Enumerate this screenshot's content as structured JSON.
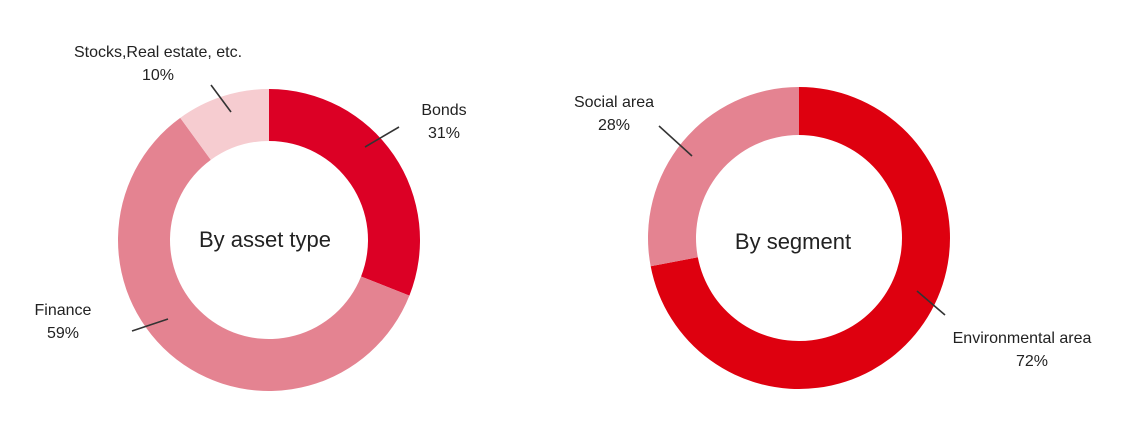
{
  "chart_data": [
    {
      "type": "pie",
      "title": "By asset type",
      "slices": [
        {
          "name": "Bonds",
          "value": 31,
          "label": "31%",
          "color": "#DC0025"
        },
        {
          "name": "Finance",
          "value": 59,
          "label": "59%",
          "color": "#E48391"
        },
        {
          "name": "Stocks,Real estate, etc.",
          "value": 10,
          "label": "10%",
          "color": "#F6CCD0"
        }
      ]
    },
    {
      "type": "pie",
      "title": "By segment",
      "slices": [
        {
          "name": "Environmental area",
          "value": 72,
          "label": "72%",
          "color": "#DE000F"
        },
        {
          "name": "Social area",
          "value": 28,
          "label": "28%",
          "color": "#E48391"
        }
      ]
    }
  ]
}
